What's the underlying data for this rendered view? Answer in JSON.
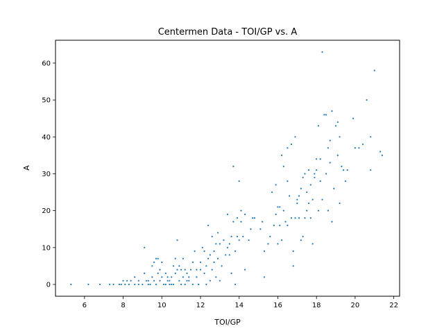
{
  "chart_data": {
    "type": "scatter",
    "title": "Centermen Data - TOI/GP vs. A",
    "xlabel": "TOI/GP",
    "ylabel": "A",
    "xlim": [
      4.5,
      22.3
    ],
    "ylim": [
      -3.2,
      66.2
    ],
    "xticks": [
      6,
      8,
      10,
      12,
      14,
      16,
      18,
      20,
      22
    ],
    "yticks": [
      0,
      10,
      20,
      30,
      40,
      50,
      60
    ],
    "grid": false,
    "legend": "none",
    "marker_color": "#1f77b4",
    "points": [
      [
        5.3,
        0
      ],
      [
        6.2,
        0
      ],
      [
        6.8,
        0
      ],
      [
        7.3,
        0
      ],
      [
        7.5,
        0
      ],
      [
        7.8,
        0
      ],
      [
        7.9,
        0
      ],
      [
        8.0,
        1
      ],
      [
        8.1,
        0
      ],
      [
        8.2,
        1
      ],
      [
        8.3,
        0
      ],
      [
        8.4,
        1
      ],
      [
        8.6,
        0
      ],
      [
        8.6,
        2
      ],
      [
        8.8,
        0
      ],
      [
        8.8,
        1
      ],
      [
        9.0,
        0
      ],
      [
        9.1,
        10
      ],
      [
        9.1,
        3
      ],
      [
        9.2,
        1
      ],
      [
        9.3,
        0
      ],
      [
        9.3,
        1
      ],
      [
        9.4,
        0
      ],
      [
        9.5,
        2
      ],
      [
        9.5,
        5
      ],
      [
        9.6,
        1
      ],
      [
        9.6,
        6
      ],
      [
        9.7,
        7
      ],
      [
        9.7,
        0
      ],
      [
        9.8,
        3
      ],
      [
        9.8,
        7
      ],
      [
        9.9,
        4
      ],
      [
        9.9,
        1
      ],
      [
        10.0,
        6
      ],
      [
        10.0,
        2
      ],
      [
        10.1,
        0
      ],
      [
        10.2,
        0
      ],
      [
        10.2,
        3
      ],
      [
        10.3,
        1
      ],
      [
        10.3,
        2
      ],
      [
        10.4,
        0
      ],
      [
        10.4,
        1
      ],
      [
        10.5,
        0
      ],
      [
        10.5,
        2
      ],
      [
        10.6,
        0
      ],
      [
        10.6,
        5
      ],
      [
        10.7,
        7
      ],
      [
        10.7,
        3
      ],
      [
        10.8,
        4
      ],
      [
        10.8,
        12
      ],
      [
        10.9,
        1
      ],
      [
        10.9,
        5
      ],
      [
        11.0,
        0
      ],
      [
        11.0,
        4
      ],
      [
        11.1,
        2
      ],
      [
        11.1,
        7
      ],
      [
        11.2,
        0
      ],
      [
        11.2,
        4
      ],
      [
        11.3,
        1
      ],
      [
        11.3,
        3
      ],
      [
        11.4,
        1
      ],
      [
        11.4,
        2
      ],
      [
        11.5,
        4
      ],
      [
        11.6,
        0
      ],
      [
        11.6,
        6
      ],
      [
        11.7,
        9
      ],
      [
        11.8,
        2
      ],
      [
        11.8,
        4
      ],
      [
        11.9,
        0
      ],
      [
        11.9,
        0
      ],
      [
        12.0,
        4
      ],
      [
        12.0,
        6
      ],
      [
        12.1,
        10
      ],
      [
        12.2,
        3
      ],
      [
        12.2,
        9
      ],
      [
        12.3,
        0
      ],
      [
        12.3,
        5
      ],
      [
        12.4,
        7
      ],
      [
        12.4,
        16
      ],
      [
        12.5,
        1
      ],
      [
        12.5,
        8
      ],
      [
        12.6,
        4
      ],
      [
        12.6,
        13
      ],
      [
        12.7,
        6
      ],
      [
        12.7,
        9
      ],
      [
        12.8,
        2
      ],
      [
        12.8,
        11
      ],
      [
        12.9,
        7
      ],
      [
        12.9,
        14
      ],
      [
        13.0,
        1
      ],
      [
        13.0,
        11
      ],
      [
        13.1,
        5
      ],
      [
        13.2,
        12
      ],
      [
        13.3,
        8
      ],
      [
        13.4,
        10
      ],
      [
        13.4,
        19
      ],
      [
        13.5,
        8
      ],
      [
        13.5,
        11
      ],
      [
        13.6,
        3
      ],
      [
        13.6,
        13
      ],
      [
        13.7,
        17
      ],
      [
        13.7,
        32
      ],
      [
        13.8,
        9
      ],
      [
        13.8,
        0
      ],
      [
        13.9,
        13
      ],
      [
        13.9,
        18
      ],
      [
        14.0,
        12
      ],
      [
        14.0,
        28
      ],
      [
        14.1,
        17
      ],
      [
        14.1,
        20
      ],
      [
        14.2,
        13
      ],
      [
        14.3,
        4
      ],
      [
        14.3,
        19
      ],
      [
        14.5,
        12
      ],
      [
        14.6,
        15
      ],
      [
        14.7,
        18
      ],
      [
        14.8,
        18
      ],
      [
        15.1,
        15
      ],
      [
        15.2,
        17
      ],
      [
        15.3,
        2
      ],
      [
        15.3,
        9
      ],
      [
        15.5,
        11
      ],
      [
        15.6,
        13
      ],
      [
        15.7,
        25
      ],
      [
        15.8,
        16
      ],
      [
        15.9,
        19
      ],
      [
        15.9,
        27
      ],
      [
        16.0,
        11
      ],
      [
        16.0,
        21
      ],
      [
        16.1,
        16
      ],
      [
        16.1,
        21
      ],
      [
        16.2,
        12
      ],
      [
        16.2,
        35
      ],
      [
        16.3,
        20
      ],
      [
        16.3,
        32
      ],
      [
        16.4,
        17
      ],
      [
        16.5,
        28
      ],
      [
        16.5,
        37
      ],
      [
        16.5,
        16
      ],
      [
        16.6,
        24
      ],
      [
        16.7,
        18
      ],
      [
        16.7,
        38
      ],
      [
        16.8,
        9
      ],
      [
        16.8,
        5
      ],
      [
        16.9,
        18
      ],
      [
        16.9,
        40
      ],
      [
        17.0,
        22
      ],
      [
        17.0,
        23
      ],
      [
        17.1,
        18
      ],
      [
        17.1,
        24
      ],
      [
        17.2,
        12
      ],
      [
        17.2,
        26
      ],
      [
        17.3,
        13
      ],
      [
        17.3,
        29
      ],
      [
        17.4,
        18
      ],
      [
        17.4,
        30
      ],
      [
        17.5,
        20
      ],
      [
        17.5,
        25
      ],
      [
        17.6,
        22
      ],
      [
        17.6,
        31
      ],
      [
        17.7,
        18
      ],
      [
        17.7,
        27
      ],
      [
        17.8,
        11
      ],
      [
        17.8,
        23
      ],
      [
        17.9,
        30
      ],
      [
        17.9,
        29
      ],
      [
        18.0,
        31
      ],
      [
        18.0,
        34
      ],
      [
        18.1,
        20
      ],
      [
        18.1,
        43
      ],
      [
        18.2,
        28
      ],
      [
        18.2,
        34
      ],
      [
        18.3,
        63
      ],
      [
        18.3,
        23
      ],
      [
        18.4,
        46
      ],
      [
        18.5,
        30
      ],
      [
        18.5,
        46
      ],
      [
        18.6,
        37
      ],
      [
        18.6,
        20
      ],
      [
        18.7,
        33
      ],
      [
        18.7,
        39
      ],
      [
        18.8,
        17
      ],
      [
        18.8,
        47
      ],
      [
        18.9,
        26
      ],
      [
        19.0,
        43
      ],
      [
        19.1,
        35
      ],
      [
        19.1,
        44
      ],
      [
        19.2,
        22
      ],
      [
        19.2,
        40
      ],
      [
        19.3,
        32
      ],
      [
        19.4,
        31
      ],
      [
        19.5,
        28
      ],
      [
        19.6,
        31
      ],
      [
        19.9,
        45
      ],
      [
        20.0,
        37
      ],
      [
        20.2,
        37
      ],
      [
        20.4,
        38
      ],
      [
        20.6,
        50
      ],
      [
        20.8,
        40
      ],
      [
        20.8,
        31
      ],
      [
        21.0,
        58
      ],
      [
        21.3,
        36
      ],
      [
        21.4,
        35
      ]
    ]
  }
}
